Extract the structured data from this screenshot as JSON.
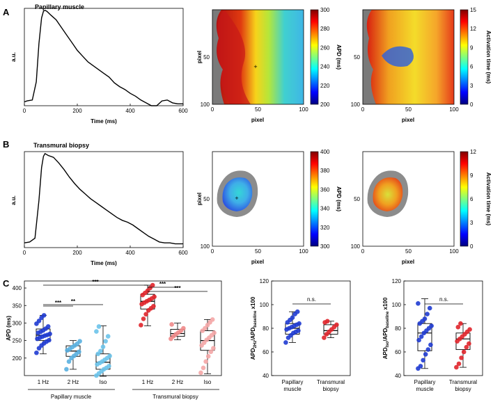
{
  "colors": {
    "line": "#000000",
    "pm_1hz": "#1f3bd1",
    "pm_2hz": "#5ab0e0",
    "pm_iso": "#6bc3ea",
    "tb_1hz": "#e0252b",
    "tb_2hz": "#f08a8a",
    "tb_iso": "#f4a6a6",
    "tissue_gray": "#8c8c8c"
  },
  "panels": {
    "A": {
      "label": "A",
      "title": "Papillary muscle"
    },
    "B": {
      "label": "B",
      "title": "Transmural biopsy"
    },
    "C": {
      "label": "C"
    }
  },
  "chart_data": [
    {
      "id": "A-trace",
      "type": "line",
      "title": "Papillary muscle",
      "xlabel": "Time (ms)",
      "ylabel": "a.u.",
      "xlim": [
        0,
        600
      ],
      "xticks": [
        0,
        200,
        400,
        600
      ],
      "yticks": [],
      "x": [
        0,
        10,
        30,
        45,
        55,
        65,
        72,
        78,
        85,
        100,
        120,
        140,
        160,
        180,
        200,
        220,
        240,
        260,
        280,
        300,
        320,
        340,
        360,
        380,
        400,
        420,
        440,
        460,
        480,
        500,
        520,
        540,
        560,
        580,
        600
      ],
      "values": [
        0.04,
        0.05,
        0.06,
        0.25,
        0.65,
        0.92,
        0.99,
        1.0,
        0.99,
        0.95,
        0.9,
        0.82,
        0.74,
        0.66,
        0.58,
        0.52,
        0.46,
        0.42,
        0.38,
        0.34,
        0.3,
        0.24,
        0.2,
        0.17,
        0.13,
        0.1,
        0.06,
        0.03,
        0.0,
        0.0,
        0.05,
        0.06,
        0.03,
        0.02,
        0.02
      ]
    },
    {
      "id": "A-apd",
      "type": "heatmap",
      "xlabel": "pixel",
      "ylabel": "pixel",
      "xticks": [
        0,
        50,
        100
      ],
      "yticks": [
        50,
        100
      ],
      "colorbar_label": "APD (ms)",
      "colorbar_range": [
        200,
        300
      ],
      "colorbar_ticks": [
        200,
        220,
        240,
        260,
        280,
        300
      ]
    },
    {
      "id": "A-act",
      "type": "heatmap",
      "xlabel": "pixel",
      "ylabel": "",
      "xticks": [
        0,
        50,
        100
      ],
      "yticks": [
        50,
        100
      ],
      "colorbar_label": "Activation time (ms)",
      "colorbar_range": [
        0,
        15
      ],
      "colorbar_ticks": [
        0,
        3,
        6,
        9,
        12,
        15
      ]
    },
    {
      "id": "B-trace",
      "type": "line",
      "title": "Transmural biopsy",
      "xlabel": "Time (ms)",
      "ylabel": "a.u.",
      "xlim": [
        0,
        600
      ],
      "xticks": [
        0,
        200,
        400,
        600
      ],
      "yticks": [],
      "x": [
        0,
        20,
        40,
        55,
        65,
        72,
        78,
        90,
        110,
        130,
        150,
        170,
        190,
        210,
        230,
        250,
        270,
        290,
        310,
        330,
        350,
        370,
        390,
        410,
        430,
        450,
        470,
        490,
        510,
        530,
        550,
        570,
        590,
        600
      ],
      "values": [
        0.05,
        0.06,
        0.1,
        0.5,
        0.85,
        0.97,
        1.0,
        0.98,
        0.96,
        0.9,
        0.83,
        0.75,
        0.68,
        0.62,
        0.57,
        0.52,
        0.48,
        0.44,
        0.4,
        0.36,
        0.32,
        0.29,
        0.27,
        0.24,
        0.2,
        0.16,
        0.12,
        0.09,
        0.06,
        0.05,
        0.05,
        0.04,
        0.04,
        0.04
      ]
    },
    {
      "id": "B-apd",
      "type": "heatmap",
      "xlabel": "pixel",
      "ylabel": "pixel",
      "xticks": [
        0,
        50,
        100
      ],
      "yticks": [
        50,
        100
      ],
      "colorbar_label": "APD (ms)",
      "colorbar_range": [
        300,
        400
      ],
      "colorbar_ticks": [
        300,
        320,
        340,
        360,
        380,
        400
      ]
    },
    {
      "id": "B-act",
      "type": "heatmap",
      "xlabel": "pixel",
      "ylabel": "",
      "xticks": [
        0,
        50,
        100
      ],
      "yticks": [
        50,
        100
      ],
      "colorbar_label": "Activation time (ms)",
      "colorbar_range": [
        0,
        12
      ],
      "colorbar_ticks": [
        0,
        3,
        6,
        9,
        12
      ]
    },
    {
      "id": "C-apd",
      "type": "scatter",
      "ylabel": "APD (ms)",
      "ylim": [
        150,
        420
      ],
      "yticks": [
        200,
        250,
        300,
        350,
        400
      ],
      "categories": [
        "1 Hz",
        "2 Hz",
        "Iso",
        "1 Hz",
        "2 Hz",
        "Iso"
      ],
      "group_labels": [
        "Papillary muscle",
        "Transmural biopsy"
      ],
      "series": [
        {
          "group": "Papillary muscle",
          "category": "1 Hz",
          "color": "pm_1hz",
          "box": [
            212,
            250,
            265,
            283,
            322
          ],
          "points": [
            215,
            228,
            236,
            242,
            247,
            251,
            255,
            258,
            261,
            264,
            266,
            269,
            272,
            275,
            279,
            284,
            290,
            298,
            306,
            315,
            322
          ]
        },
        {
          "group": "Papillary muscle",
          "category": "2 Hz",
          "color": "pm_2hz",
          "box": [
            168,
            205,
            220,
            235,
            250
          ],
          "points": [
            168,
            190,
            200,
            206,
            212,
            218,
            222,
            226,
            231,
            236,
            241,
            248
          ]
        },
        {
          "group": "Papillary muscle",
          "category": "Iso",
          "color": "pm_iso",
          "box": [
            148,
            168,
            188,
            212,
            292
          ],
          "points": [
            150,
            156,
            162,
            168,
            172,
            177,
            182,
            186,
            190,
            195,
            200,
            206,
            212,
            220,
            232,
            248,
            262,
            276,
            290
          ]
        },
        {
          "group": "Transmural biopsy",
          "category": "1 Hz",
          "color": "tb_1hz",
          "box": [
            292,
            340,
            362,
            382,
            408
          ],
          "points": [
            294,
            312,
            325,
            336,
            342,
            348,
            354,
            358,
            362,
            366,
            370,
            375,
            380,
            386,
            392,
            400,
            408
          ]
        },
        {
          "group": "Transmural biopsy",
          "category": "2 Hz",
          "color": "tb_2hz",
          "box": [
            252,
            262,
            270,
            282,
            300
          ],
          "points": [
            255,
            262,
            268,
            273,
            278,
            285,
            296
          ]
        },
        {
          "group": "Transmural biopsy",
          "category": "Iso",
          "color": "tb_iso",
          "box": [
            155,
            222,
            250,
            278,
            310
          ],
          "points": [
            158,
            172,
            190,
            205,
            218,
            228,
            236,
            244,
            252,
            258,
            265,
            272,
            278,
            285,
            294,
            302,
            310
          ]
        }
      ],
      "annotations": [
        {
          "text": "***",
          "from": 0,
          "to": 3
        },
        {
          "text": "***",
          "from": 0,
          "to": 1
        },
        {
          "text": "**",
          "from": 0,
          "to": 2
        },
        {
          "text": "***",
          "from": 3,
          "to": 4
        },
        {
          "text": "***",
          "from": 3,
          "to": 5
        }
      ]
    },
    {
      "id": "C-ratio-2hz",
      "type": "scatter",
      "ylabel_main": "APD",
      "ylabel_sub1": "2Hz",
      "ylabel_sep": "/APD",
      "ylabel_sub2": "baseline",
      "ylabel_suffix": " x100",
      "ylim": [
        40,
        120
      ],
      "yticks": [
        40,
        60,
        80,
        100,
        120
      ],
      "categories": [
        "Papillary muscle",
        "Transmural biopsy"
      ],
      "category_lines": [
        [
          "Papillary",
          "muscle"
        ],
        [
          "Transmural",
          "biopsy"
        ]
      ],
      "series": [
        {
          "category": "Papillary muscle",
          "color": "pm_1hz",
          "box": [
            68,
            75,
            80,
            84,
            94
          ],
          "points": [
            68,
            72,
            74,
            76,
            77,
            78,
            79,
            80,
            81,
            82,
            83,
            84,
            85,
            87,
            89,
            92,
            94
          ]
        },
        {
          "category": "Transmural biopsy",
          "color": "tb_1hz",
          "box": [
            72,
            75,
            78,
            83,
            86
          ],
          "points": [
            72,
            75,
            77,
            79,
            81,
            83,
            85,
            86
          ]
        }
      ],
      "annotations": [
        {
          "text": "n.s.",
          "from": 0,
          "to": 1
        }
      ]
    },
    {
      "id": "C-ratio-iso",
      "type": "scatter",
      "ylabel_main": "APD",
      "ylabel_sub1": "Iso",
      "ylabel_sep": "/APD",
      "ylabel_sub2": "baseline",
      "ylabel_suffix": " x100",
      "ylim": [
        40,
        120
      ],
      "yticks": [
        40,
        60,
        80,
        100,
        120
      ],
      "categories": [
        "Papillary muscle",
        "Transmural biopsy"
      ],
      "category_lines": [
        [
          "Papillary",
          "muscle"
        ],
        [
          "Transmural",
          "biopsy"
        ]
      ],
      "series": [
        {
          "category": "Papillary muscle",
          "color": "pm_1hz",
          "box": [
            46,
            61,
            76,
            84,
            105
          ],
          "points": [
            46,
            48,
            53,
            58,
            62,
            66,
            70,
            73,
            76,
            78,
            80,
            82,
            84,
            86,
            88,
            92,
            97,
            101
          ]
        },
        {
          "category": "Transmural biopsy",
          "color": "tb_1hz",
          "box": [
            47,
            62,
            71,
            76,
            84
          ],
          "points": [
            47,
            50,
            55,
            60,
            64,
            67,
            69,
            71,
            73,
            75,
            77,
            79,
            81,
            84
          ]
        }
      ],
      "annotations": [
        {
          "text": "n.s.",
          "from": 0,
          "to": 1
        }
      ]
    }
  ]
}
